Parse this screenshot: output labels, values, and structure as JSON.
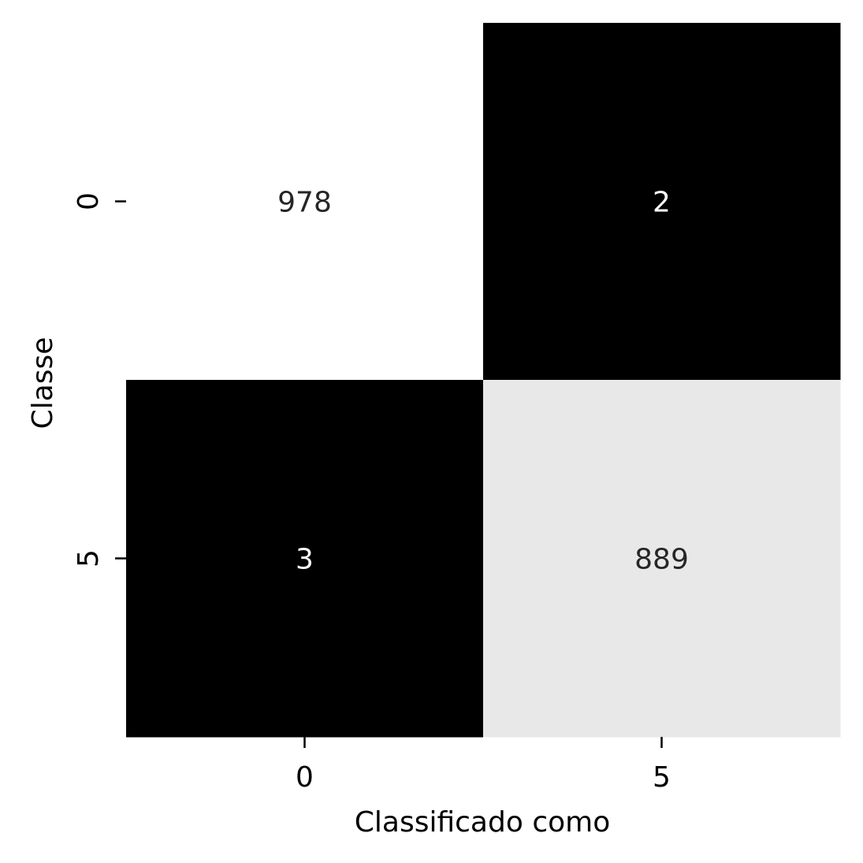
{
  "chart_data": {
    "type": "heatmap",
    "title": "",
    "xlabel": "Classificado como",
    "ylabel": "Classe",
    "x_categories": [
      "0",
      "5"
    ],
    "y_categories": [
      "0",
      "5"
    ],
    "values": [
      [
        978,
        2
      ],
      [
        3,
        889
      ]
    ],
    "colormap": "gray",
    "color_range": [
      2,
      978
    ],
    "low_color": "#000000",
    "high_color": "#ffffff",
    "dark_cell_text_color": "#ffffff",
    "light_cell_text_color": "#262626",
    "grid": false,
    "colorbar": false
  }
}
